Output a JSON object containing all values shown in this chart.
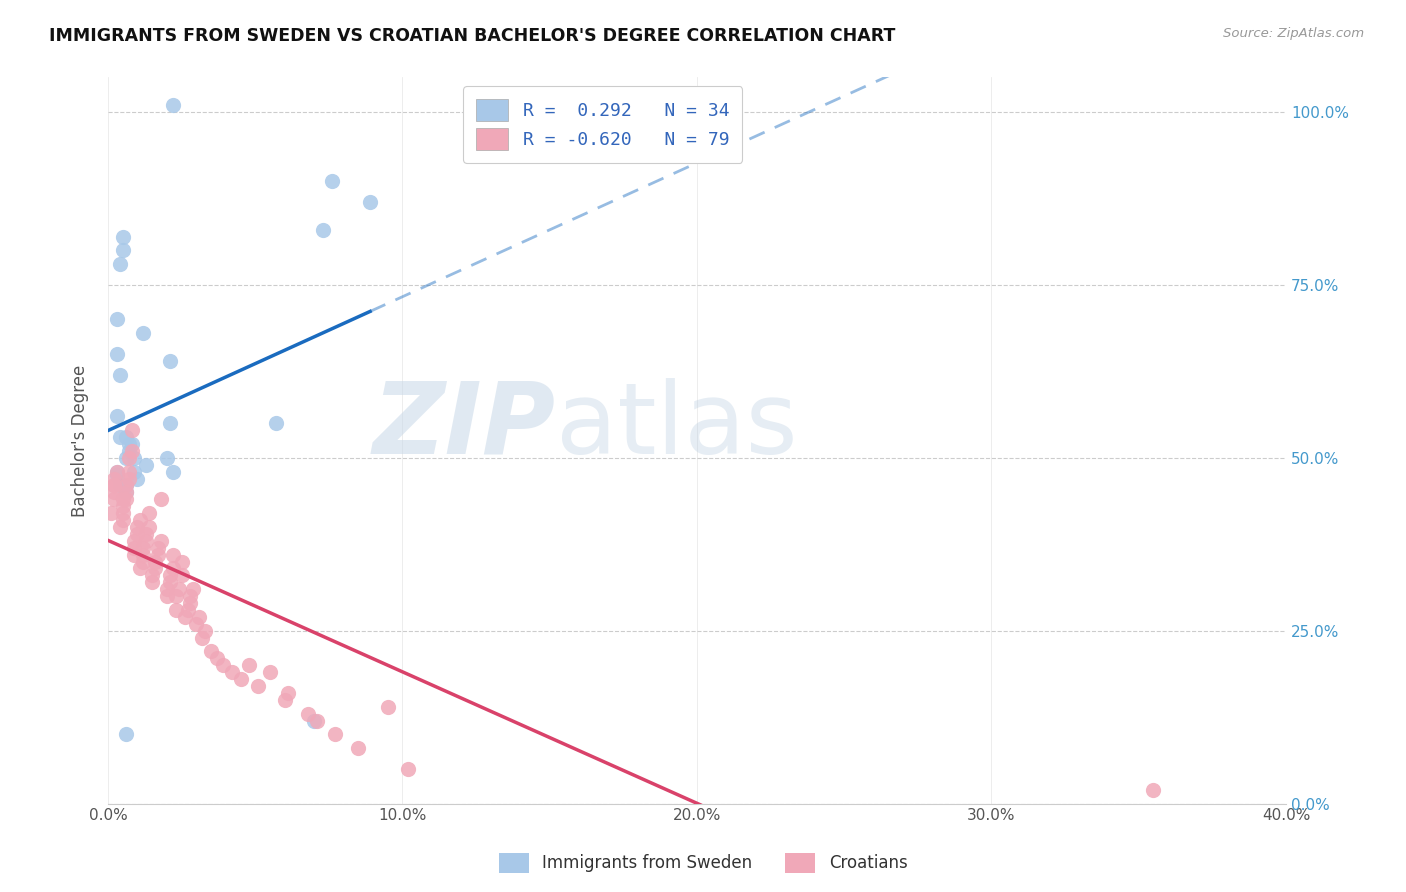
{
  "title": "IMMIGRANTS FROM SWEDEN VS CROATIAN BACHELOR'S DEGREE CORRELATION CHART",
  "source": "Source: ZipAtlas.com",
  "ylabel": "Bachelor's Degree",
  "blue_color": "#a8c8e8",
  "pink_color": "#f0a8b8",
  "blue_line_color": "#1a6bbf",
  "pink_line_color": "#d9426a",
  "watermark_zip": "ZIP",
  "watermark_atlas": "atlas",
  "blue_scatter_x": [
    0.3,
    1.2,
    0.8,
    2.0,
    2.2,
    0.9,
    1.3,
    0.9,
    0.7,
    0.6,
    0.4,
    0.7,
    1.0,
    0.6,
    0.6,
    0.4,
    0.4,
    0.4,
    0.5,
    0.3,
    0.3,
    0.3,
    0.6,
    0.3,
    2.1,
    2.1,
    0.6,
    7.0,
    0.5,
    5.7,
    2.2,
    7.3,
    8.9,
    7.6
  ],
  "blue_scatter_y": [
    47.5,
    68,
    52,
    50,
    48,
    48,
    49,
    50,
    52,
    50,
    53,
    51,
    47,
    46,
    45,
    46,
    62,
    78,
    82,
    56,
    65,
    70,
    53,
    48,
    55,
    64,
    10,
    12,
    80,
    55,
    101,
    83,
    87,
    90
  ],
  "pink_scatter_x": [
    0.1,
    0.2,
    0.2,
    0.2,
    0.2,
    0.2,
    0.3,
    0.4,
    0.5,
    0.5,
    0.5,
    0.5,
    0.6,
    0.6,
    0.6,
    0.7,
    0.7,
    0.7,
    0.8,
    0.8,
    0.9,
    0.9,
    0.9,
    1.0,
    1.0,
    1.1,
    1.1,
    1.2,
    1.2,
    1.2,
    1.3,
    1.3,
    1.4,
    1.4,
    1.5,
    1.5,
    1.6,
    1.6,
    1.7,
    1.7,
    1.8,
    1.8,
    2.0,
    2.0,
    2.1,
    2.1,
    2.2,
    2.2,
    2.3,
    2.3,
    2.4,
    2.5,
    2.5,
    2.6,
    2.7,
    2.8,
    2.8,
    2.9,
    3.0,
    3.1,
    3.2,
    3.3,
    3.5,
    3.7,
    3.9,
    4.2,
    4.5,
    4.8,
    5.1,
    5.5,
    6.0,
    6.1,
    6.8,
    7.1,
    7.7,
    8.5,
    9.5,
    10.2,
    35.5
  ],
  "pink_scatter_y": [
    42,
    44,
    45,
    46,
    47,
    46,
    48,
    40,
    41,
    42,
    43,
    44,
    44,
    45,
    46,
    47,
    48,
    50,
    51,
    54,
    36,
    37,
    38,
    39,
    40,
    41,
    34,
    35,
    36,
    37,
    38,
    39,
    40,
    42,
    32,
    33,
    34,
    35,
    36,
    37,
    38,
    44,
    30,
    31,
    32,
    33,
    34,
    36,
    28,
    30,
    31,
    33,
    35,
    27,
    28,
    29,
    30,
    31,
    26,
    27,
    24,
    25,
    22,
    21,
    20,
    19,
    18,
    20,
    17,
    19,
    15,
    16,
    13,
    12,
    10,
    8,
    14,
    5,
    2
  ],
  "xmin": 0.0,
  "xmax": 40.0,
  "ymin": 0.0,
  "ymax": 105.0,
  "xtick_vals": [
    0.0,
    10.0,
    20.0,
    30.0,
    40.0
  ],
  "xtick_labels": [
    "0.0%",
    "10.0%",
    "20.0%",
    "30.0%",
    "40.0%"
  ],
  "ytick_vals": [
    0.0,
    25.0,
    50.0,
    75.0,
    100.0
  ],
  "ytick_labels_right": [
    "0.0%",
    "25.0%",
    "50.0%",
    "75.0%",
    "100.0%"
  ],
  "background_color": "#ffffff",
  "grid_color": "#cccccc",
  "axis_color": "#cccccc"
}
